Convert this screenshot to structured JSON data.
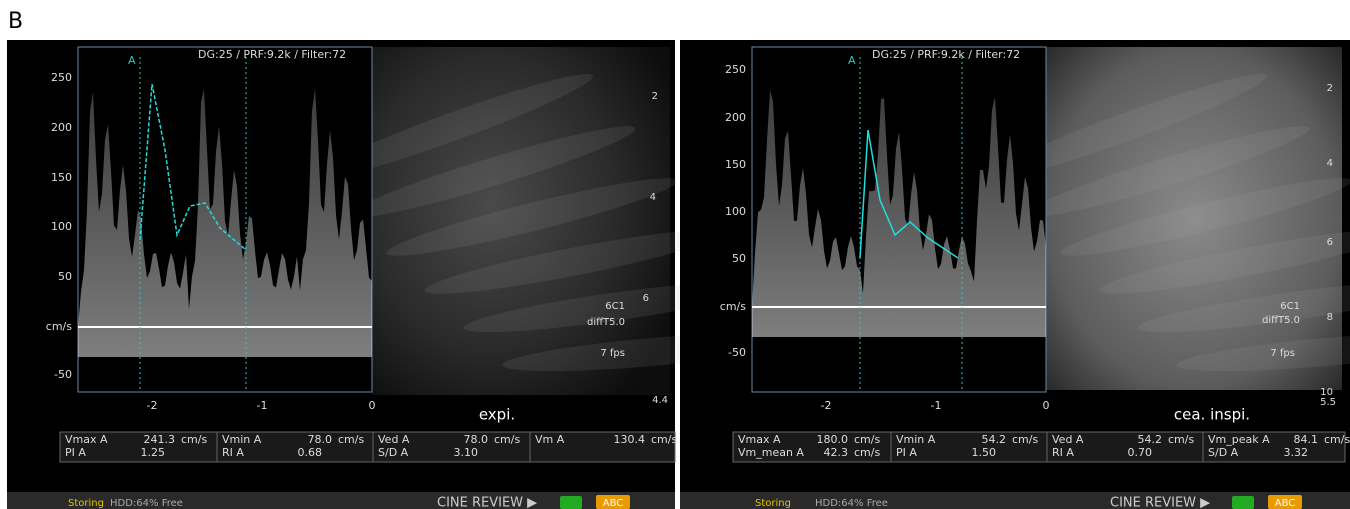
{
  "figure_label": "B",
  "panels": [
    {
      "header": "DG:25 /   PRF:9.2k   / Filter:72",
      "marker": "A",
      "y_labels": [
        "250",
        "200",
        "150",
        "100",
        "50",
        "cm/s",
        "-50"
      ],
      "x_labels": [
        "-2",
        "-1",
        "0"
      ],
      "caption": "expi.",
      "depth_labels": [
        "2",
        "4",
        "6",
        "6C1",
        "diffT5.0",
        "7 fps",
        "4.4"
      ],
      "table": [
        [
          {
            "label": "Vmax A",
            "value": "241.3",
            "unit": "cm/s"
          },
          {
            "label": "Vmin A",
            "value": "78.0",
            "unit": "cm/s"
          },
          {
            "label": "Ved A",
            "value": "78.0",
            "unit": "cm/s"
          },
          {
            "label": "Vm A",
            "value": "130.4",
            "unit": "cm/s"
          }
        ],
        [
          {
            "label": "PI A",
            "value": "1.25"
          },
          {
            "label": "RI A",
            "value": "0.68"
          },
          {
            "label": "S/D A",
            "value": "3.10"
          }
        ]
      ],
      "status": {
        "storing": "Storing",
        "disk": "HDD:64% Free",
        "mode": "CINE REVIEW ▶",
        "abc": "ABC"
      }
    },
    {
      "header": "DG:25 /   PRF:9.2k   / Filter:72",
      "marker": "A",
      "y_labels": [
        "250",
        "200",
        "150",
        "100",
        "50",
        "cm/s",
        "-50"
      ],
      "x_labels": [
        "-2",
        "-1",
        "0"
      ],
      "caption": "cea. inspi.",
      "depth_labels": [
        "2",
        "4",
        "6",
        "6C1",
        "diffT5.0",
        "8",
        "7 fps",
        "10",
        "5.5"
      ],
      "table": [
        [
          {
            "label": "Vmax A",
            "value": "180.0",
            "unit": "cm/s"
          },
          {
            "label": "Vmin A",
            "value": "54.2",
            "unit": "cm/s"
          },
          {
            "label": "Ved A",
            "value": "54.2",
            "unit": "cm/s"
          },
          {
            "label": "Vm_peak A",
            "value": "84.1",
            "unit": "cm/s"
          }
        ],
        [
          {
            "label": "Vm_mean A",
            "value": "42.3",
            "unit": "cm/s"
          },
          {
            "label": "PI A",
            "value": "1.50"
          },
          {
            "label": "RI A",
            "value": "0.70"
          },
          {
            "label": "S/D A",
            "value": "3.32"
          }
        ]
      ],
      "status": {
        "storing": "Storing",
        "disk": "HDD:64% Free",
        "mode": "CINE REVIEW ▶",
        "abc": "ABC"
      }
    }
  ]
}
